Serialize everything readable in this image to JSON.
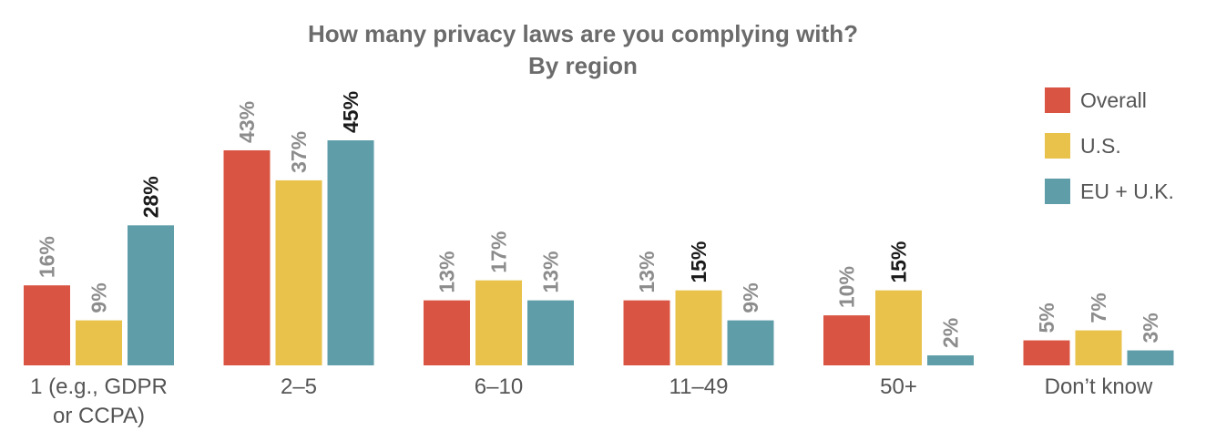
{
  "chart_data": {
    "type": "bar",
    "title": "How many privacy laws are you complying with?",
    "subtitle": "By region",
    "categories": [
      "1 (e.g., GDPR or CCPA)",
      "2–5",
      "6–10",
      "11–49",
      "50+",
      "Don’t know"
    ],
    "category_lines": [
      [
        "1 (e.g., GDPR",
        "or CCPA)"
      ],
      [
        "2–5"
      ],
      [
        "6–10"
      ],
      [
        "11–49"
      ],
      [
        "50+"
      ],
      [
        "Don’t know"
      ]
    ],
    "series": [
      {
        "name": "Overall",
        "color": "#d95442",
        "values": [
          16,
          43,
          13,
          13,
          10,
          5
        ]
      },
      {
        "name": "U.S.",
        "color": "#e8c24a",
        "values": [
          9,
          37,
          17,
          15,
          15,
          7
        ]
      },
      {
        "name": "EU + U.K.",
        "color": "#5f9ea8",
        "values": [
          28,
          45,
          13,
          9,
          2,
          3
        ]
      }
    ],
    "value_labels": [
      [
        "16%",
        "43%",
        "13%",
        "13%",
        "10%",
        "5%"
      ],
      [
        "9%",
        "37%",
        "17%",
        "15%",
        "15%",
        "7%"
      ],
      [
        "28%",
        "45%",
        "13%",
        "9%",
        "2%",
        "3%"
      ]
    ],
    "highlighted": [
      [
        false,
        false,
        false,
        false,
        false,
        false
      ],
      [
        false,
        false,
        false,
        true,
        true,
        false
      ],
      [
        true,
        true,
        false,
        false,
        false,
        false
      ]
    ],
    "label_colors": {
      "normal": "#8c8c8c",
      "highlight": "#1a1a1a"
    },
    "ylim": [
      0,
      45
    ],
    "grid": false,
    "legend_position": "top-right"
  }
}
